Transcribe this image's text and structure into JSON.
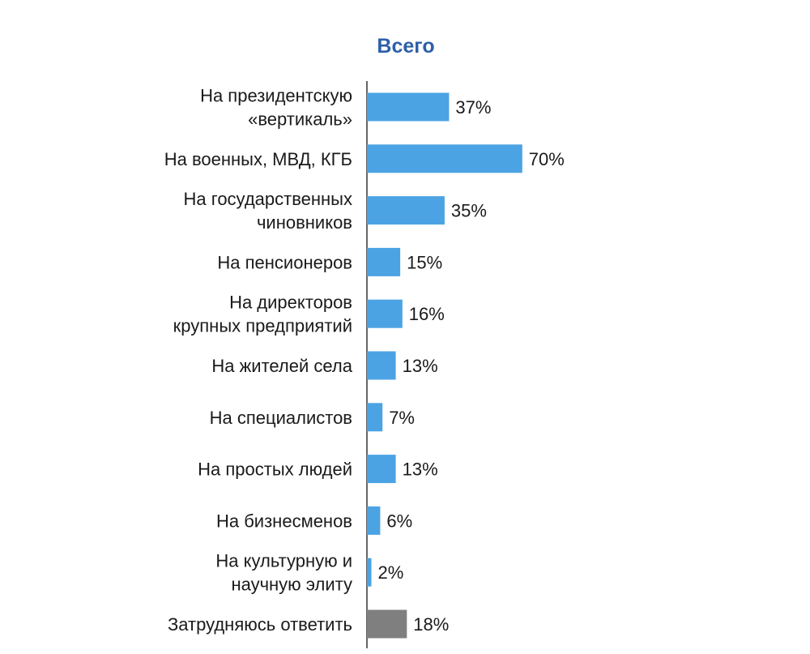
{
  "chart_data": {
    "type": "bar",
    "orientation": "horizontal",
    "title": "Всего",
    "categories": [
      [
        "На президентскую",
        "«вертикаль»"
      ],
      [
        "На военных, МВД, КГБ"
      ],
      [
        "На государственных",
        "чиновников"
      ],
      [
        "На пенсионеров"
      ],
      [
        "На директоров",
        "крупных предприятий"
      ],
      [
        "На жителей села"
      ],
      [
        "На специалистов"
      ],
      [
        "На простых людей"
      ],
      [
        "На бизнесменов"
      ],
      [
        "На культурную и",
        "научную элиту"
      ],
      [
        "Затрудняюсь ответить"
      ]
    ],
    "values": [
      37,
      70,
      35,
      15,
      16,
      13,
      7,
      13,
      6,
      2,
      18
    ],
    "value_labels": [
      "37%",
      "70%",
      "35%",
      "15%",
      "16%",
      "13%",
      "7%",
      "13%",
      "6%",
      "2%",
      "18%"
    ],
    "bar_colors": [
      "#4ba3e3",
      "#4ba3e3",
      "#4ba3e3",
      "#4ba3e3",
      "#4ba3e3",
      "#4ba3e3",
      "#4ba3e3",
      "#4ba3e3",
      "#4ba3e3",
      "#4ba3e3",
      "#7f7f7f"
    ],
    "xlim": [
      0,
      70
    ],
    "grid": false,
    "legend": "none"
  },
  "colors": {
    "title": "#2e5fa8",
    "axis": "#333333",
    "text": "#1a1a1a"
  }
}
